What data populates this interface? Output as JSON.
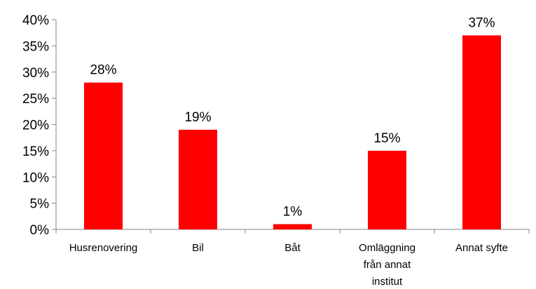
{
  "chart_data": {
    "type": "bar",
    "title": "",
    "xlabel": "",
    "ylabel": "",
    "categories": [
      [
        "Husrenovering"
      ],
      [
        "Bil"
      ],
      [
        "Båt"
      ],
      [
        "Omläggning",
        "från annat",
        "institut"
      ],
      [
        "Annat syfte"
      ]
    ],
    "values": [
      28,
      19,
      1,
      15,
      37
    ],
    "value_labels": [
      "28%",
      "19%",
      "1%",
      "15%",
      "37%"
    ],
    "y_ticks": [
      "0%",
      "5%",
      "10%",
      "15%",
      "20%",
      "25%",
      "30%",
      "35%",
      "40%"
    ],
    "y_tick_values": [
      0,
      5,
      10,
      15,
      20,
      25,
      30,
      35,
      40
    ],
    "ylim": [
      0,
      40
    ],
    "grid": false,
    "legend": "none",
    "bar_color": "#ff0000",
    "axis_color": "#868686"
  }
}
